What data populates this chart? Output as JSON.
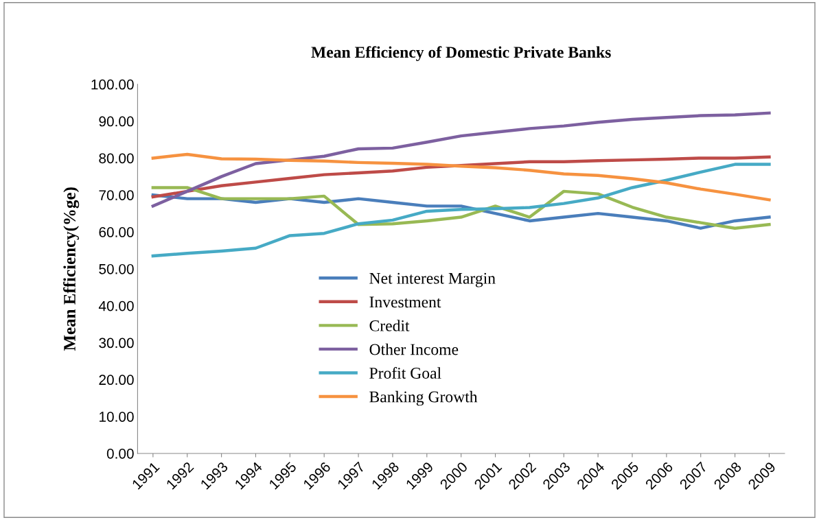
{
  "chart_data": {
    "type": "line",
    "title": "Mean Efficiency of Domestic Private Banks",
    "ylabel": "Mean Efficiency(%ge)",
    "categories": [
      "1991",
      "1992",
      "1993",
      "1994",
      "1995",
      "1996",
      "1997",
      "1998",
      "1999",
      "2000",
      "2001",
      "2002",
      "2003",
      "2004",
      "2005",
      "2006",
      "2007",
      "2008",
      "2009"
    ],
    "ylim": [
      0,
      100
    ],
    "yticks": [
      {
        "value": 0,
        "label": "0.00"
      },
      {
        "value": 10,
        "label": "10.00"
      },
      {
        "value": 20,
        "label": "20.00"
      },
      {
        "value": 30,
        "label": "30.00"
      },
      {
        "value": 40,
        "label": "40.00"
      },
      {
        "value": 50,
        "label": "50.00"
      },
      {
        "value": 60,
        "label": "60.00"
      },
      {
        "value": 70,
        "label": "70.00"
      },
      {
        "value": 80,
        "label": "80.00"
      },
      {
        "value": 90,
        "label": "90.00"
      },
      {
        "value": 100,
        "label": "100.00"
      }
    ],
    "grid": false,
    "legend": "center",
    "marker": "none",
    "line_style": "solid",
    "series": [
      {
        "name": "Net interest Margin",
        "color": "#4a7ebb",
        "values": [
          70,
          69,
          69,
          68,
          69,
          68,
          69,
          68,
          67,
          67,
          65,
          63,
          64,
          65,
          64,
          63,
          61,
          63,
          64
        ]
      },
      {
        "name": "Investment",
        "color": "#be4b48",
        "values": [
          69.5,
          71,
          72.5,
          73.5,
          74.5,
          75.5,
          76,
          76.5,
          77.5,
          78,
          78.5,
          79,
          79,
          79.3,
          79.5,
          79.7,
          80,
          80,
          80.3
        ]
      },
      {
        "name": "Credit",
        "color": "#98b954",
        "values": [
          72,
          72,
          69,
          69,
          69,
          69.7,
          62,
          62.2,
          63,
          64,
          67,
          64,
          71,
          70.3,
          66.7,
          64,
          62.5,
          61,
          62
        ]
      },
      {
        "name": "Other Income",
        "color": "#7d60a0",
        "values": [
          67,
          71,
          75,
          78.5,
          79.5,
          80.5,
          82.5,
          82.7,
          84.3,
          86,
          87,
          88,
          88.7,
          89.7,
          90.5,
          91,
          91.5,
          91.7,
          92.2
        ]
      },
      {
        "name": "Profit Goal",
        "color": "#46aac5",
        "values": [
          53.5,
          54.2,
          54.8,
          55.6,
          59,
          59.6,
          62.2,
          63.2,
          65.6,
          66.1,
          66.3,
          66.6,
          67.7,
          69.2,
          72,
          74,
          76.2,
          78.3,
          78.3
        ]
      },
      {
        "name": "Banking Growth",
        "color": "#f69240",
        "values": [
          80,
          81,
          79.8,
          79.7,
          79.4,
          79.2,
          78.8,
          78.6,
          78.3,
          77.8,
          77.4,
          76.7,
          75.7,
          75.3,
          74.4,
          73.3,
          71.6,
          70.2,
          68.7
        ]
      }
    ]
  }
}
